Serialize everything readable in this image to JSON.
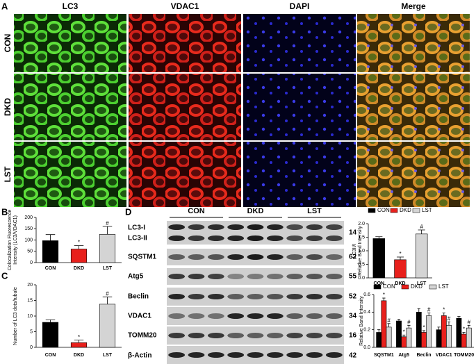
{
  "panels": [
    "A",
    "B",
    "C",
    "D"
  ],
  "micrographs": {
    "columns": [
      "LC3",
      "VDAC1",
      "DAPI",
      "Merge"
    ],
    "rows": [
      "CON",
      "DKD",
      "LST"
    ]
  },
  "blot": {
    "groups": [
      "CON",
      "DKD",
      "LST"
    ],
    "proteins": [
      "LC3-I",
      "LC3-II",
      "SQSTM1",
      "Atg5",
      "Beclin",
      "VDAC1",
      "TOMM20",
      "β-Actin"
    ],
    "kda": [
      "14",
      "62",
      "55",
      "52",
      "34",
      "16",
      "42"
    ]
  },
  "chart_data": [
    {
      "type": "bar",
      "ylabel": [
        "Colocalization Fluorescence",
        "Intensity (LC3/VDAC1)"
      ],
      "categories": [
        "CON",
        "DKD",
        "LST"
      ],
      "values": [
        97,
        60,
        125
      ],
      "errors": [
        27,
        15,
        35
      ],
      "colors": [
        "#000000",
        "#e8201c",
        "#d4d4d4"
      ],
      "marks": [
        null,
        "*",
        "#"
      ],
      "ylim": [
        0,
        200
      ],
      "yticks": [
        0,
        50,
        100,
        150,
        200
      ]
    },
    {
      "type": "bar",
      "ylabel": [
        "Number of LC3 dots/tubule"
      ],
      "categories": [
        "CON",
        "DKD",
        "LST"
      ],
      "values": [
        8,
        1.5,
        13.8
      ],
      "errors": [
        0.8,
        0.8,
        2.3
      ],
      "colors": [
        "#000000",
        "#e8201c",
        "#d4d4d4"
      ],
      "marks": [
        null,
        "*",
        "#"
      ],
      "ylim": [
        0,
        20
      ],
      "yticks": [
        0,
        5,
        10,
        15,
        20
      ]
    },
    {
      "type": "bar",
      "ylabel": [
        "LC3II/I",
        "Relative Band Intensity"
      ],
      "categories": [
        "CON",
        "DKD",
        "LST"
      ],
      "values": [
        1.45,
        0.67,
        1.62
      ],
      "errors": [
        0.07,
        0.1,
        0.15
      ],
      "colors": [
        "#000000",
        "#e8201c",
        "#d4d4d4"
      ],
      "marks": [
        null,
        "*",
        "#"
      ],
      "legend": true,
      "ylim": [
        0,
        2
      ],
      "yticks": [
        {
          "value": 0,
          "label": "0.0"
        },
        0.5,
        {
          "value": 1,
          "label": "1.0"
        },
        1.5,
        {
          "value": 2,
          "label": "2.0"
        }
      ]
    },
    {
      "type": "grouped",
      "ylabel": [
        "Relative Band Intensity"
      ],
      "categories": [
        "SQSTM1",
        "Atg5",
        "Beclin",
        "VDAC1",
        "TOMM20"
      ],
      "legend": true,
      "series": [
        {
          "name": "CON",
          "color": "#000000",
          "values": [
            0.17,
            0.3,
            0.4,
            0.2,
            0.33
          ],
          "errors": [
            0.03,
            0.02,
            0.04,
            0.03,
            0.02
          ]
        },
        {
          "name": "DKD",
          "color": "#e8201c",
          "values": [
            0.53,
            0.12,
            0.17,
            0.36,
            0.15
          ],
          "errors": [
            0.03,
            0.02,
            0.02,
            0.03,
            0.02
          ],
          "marks": [
            "*",
            "*",
            "*",
            "*",
            "*"
          ]
        },
        {
          "name": "LST",
          "color": "#d4d4d4",
          "values": [
            0.23,
            0.22,
            0.36,
            0.25,
            0.22
          ],
          "errors": [
            0.04,
            0.03,
            0.03,
            0.04,
            0.03
          ],
          "marks": [
            "#",
            "#",
            "#",
            "#",
            "#"
          ]
        }
      ],
      "ylim": [
        0,
        0.6
      ],
      "yticks": [
        {
          "value": 0,
          "label": "0.0"
        },
        0.2,
        0.4,
        0.6
      ]
    }
  ]
}
